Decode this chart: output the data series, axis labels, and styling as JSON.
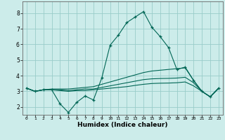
{
  "xlabel": "Humidex (Indice chaleur)",
  "xlim": [
    -0.5,
    23.5
  ],
  "ylim": [
    1.5,
    8.75
  ],
  "yticks": [
    2,
    3,
    4,
    5,
    6,
    7,
    8
  ],
  "xticks": [
    0,
    1,
    2,
    3,
    4,
    5,
    6,
    7,
    8,
    9,
    10,
    11,
    12,
    13,
    14,
    15,
    16,
    17,
    18,
    19,
    20,
    21,
    22,
    23
  ],
  "bg_color": "#ccecea",
  "grid_color": "#99ccc9",
  "line_color": "#006655",
  "lines": [
    {
      "x": [
        0,
        1,
        2,
        3,
        4,
        5,
        6,
        7,
        8,
        9,
        10,
        11,
        12,
        13,
        14,
        15,
        16,
        17,
        18,
        19,
        20,
        21,
        22,
        23
      ],
      "y": [
        3.2,
        3.0,
        3.1,
        3.1,
        2.2,
        1.65,
        2.3,
        2.7,
        2.45,
        3.85,
        5.95,
        6.6,
        7.4,
        7.75,
        8.1,
        7.1,
        6.5,
        5.8,
        4.4,
        4.55,
        3.7,
        3.0,
        2.65,
        3.2
      ],
      "marker": "+"
    },
    {
      "x": [
        0,
        1,
        2,
        3,
        4,
        5,
        6,
        7,
        8,
        9,
        10,
        11,
        12,
        13,
        14,
        15,
        16,
        17,
        18,
        19,
        20,
        21,
        22,
        23
      ],
      "y": [
        3.2,
        3.0,
        3.1,
        3.15,
        3.15,
        3.15,
        3.2,
        3.25,
        3.3,
        3.45,
        3.6,
        3.75,
        3.9,
        4.05,
        4.2,
        4.3,
        4.35,
        4.4,
        4.45,
        4.5,
        3.7,
        3.0,
        2.65,
        3.2
      ],
      "marker": null
    },
    {
      "x": [
        0,
        1,
        2,
        3,
        4,
        5,
        6,
        7,
        8,
        9,
        10,
        11,
        12,
        13,
        14,
        15,
        16,
        17,
        18,
        19,
        20,
        21,
        22,
        23
      ],
      "y": [
        3.2,
        3.0,
        3.1,
        3.1,
        3.1,
        3.05,
        3.1,
        3.15,
        3.15,
        3.25,
        3.35,
        3.45,
        3.55,
        3.65,
        3.75,
        3.8,
        3.82,
        3.83,
        3.85,
        3.9,
        3.55,
        3.0,
        2.65,
        3.2
      ],
      "marker": null
    },
    {
      "x": [
        0,
        1,
        2,
        3,
        4,
        5,
        6,
        7,
        8,
        9,
        10,
        11,
        12,
        13,
        14,
        15,
        16,
        17,
        18,
        19,
        20,
        21,
        22,
        23
      ],
      "y": [
        3.2,
        3.0,
        3.1,
        3.1,
        3.05,
        3.0,
        3.05,
        3.05,
        3.1,
        3.15,
        3.2,
        3.25,
        3.3,
        3.38,
        3.45,
        3.5,
        3.52,
        3.53,
        3.55,
        3.6,
        3.35,
        3.0,
        2.65,
        3.2
      ],
      "marker": null
    }
  ]
}
